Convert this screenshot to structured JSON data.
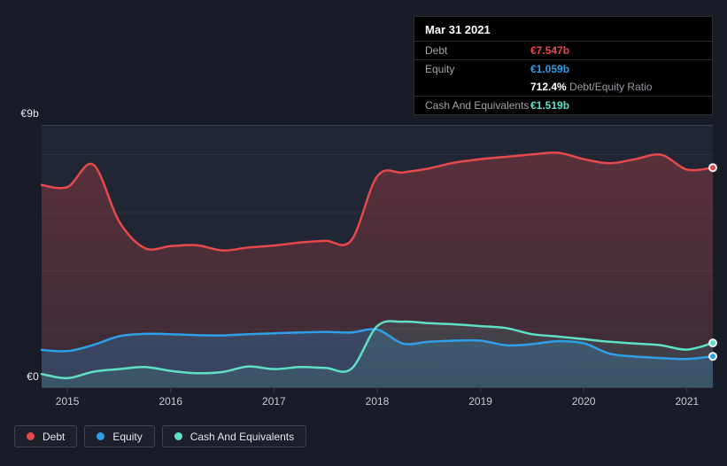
{
  "colors": {
    "page_bg": "#171c26",
    "plot_bg": "#202633",
    "grid": "rgba(255,255,255,0.06)",
    "grid_top": "#3a414d",
    "axis": "#3b4350",
    "debt": "#e6494b",
    "equity": "#2e9fe8",
    "cash": "#5fe0c4",
    "marker_ring": "#eef1f4"
  },
  "y_axis": {
    "top_label": "€9b",
    "zero_label": "€0"
  },
  "tooltip": {
    "date": "Mar 31 2021",
    "debt_label": "Debt",
    "debt_value": "€7.547b",
    "equity_label": "Equity",
    "equity_value": "€1.059b",
    "ratio_value": "712.4%",
    "ratio_label": " Debt/Equity Ratio",
    "cash_label": "Cash And Equivalents",
    "cash_value": "€1.519b"
  },
  "legend": {
    "items": [
      {
        "label": "Debt",
        "color": "#e6494b"
      },
      {
        "label": "Equity",
        "color": "#2e9fe8"
      },
      {
        "label": "Cash And Equivalents",
        "color": "#5fe0c4"
      }
    ]
  },
  "chart_data": {
    "type": "area",
    "x_unit": "decimal_year_quarterly",
    "xlim": [
      2014.75,
      2021.25
    ],
    "ylim": [
      0,
      9
    ],
    "y_gridlines": [
      2,
      4,
      6,
      8
    ],
    "x_ticks": [
      2015,
      2016,
      2017,
      2018,
      2019,
      2020,
      2021
    ],
    "grid": "horizontal-only",
    "legend_position": "bottom-left",
    "x": [
      2014.75,
      2015.0,
      2015.25,
      2015.5,
      2015.75,
      2016.0,
      2016.25,
      2016.5,
      2016.75,
      2017.0,
      2017.25,
      2017.5,
      2017.75,
      2018.0,
      2018.25,
      2018.5,
      2018.75,
      2019.0,
      2019.25,
      2019.5,
      2019.75,
      2020.0,
      2020.25,
      2020.5,
      2020.75,
      2021.0,
      2021.25
    ],
    "series": [
      {
        "name": "Debt",
        "unit": "€b",
        "color": "#e6494b",
        "fill_top": "rgba(230,73,75,0.30)",
        "fill_bottom": "rgba(230,73,75,0.13)",
        "values": [
          6.95,
          6.88,
          7.65,
          5.7,
          4.78,
          4.85,
          4.88,
          4.7,
          4.8,
          4.87,
          4.97,
          5.03,
          5.05,
          7.25,
          7.38,
          7.52,
          7.72,
          7.84,
          7.92,
          8.0,
          8.06,
          7.84,
          7.7,
          7.84,
          7.99,
          7.48,
          7.547
        ]
      },
      {
        "name": "Equity",
        "unit": "€b",
        "color": "#2e9fe8",
        "fill_top": "rgba(46,144,215,0.42)",
        "fill_bottom": "rgba(46,144,215,0.24)",
        "values": [
          1.28,
          1.24,
          1.45,
          1.75,
          1.83,
          1.82,
          1.79,
          1.78,
          1.82,
          1.85,
          1.88,
          1.9,
          1.88,
          1.98,
          1.5,
          1.56,
          1.6,
          1.6,
          1.44,
          1.48,
          1.58,
          1.51,
          1.15,
          1.05,
          1.0,
          0.97,
          1.059
        ]
      },
      {
        "name": "Cash And Equivalents",
        "unit": "€b",
        "color": "#5fe0c4",
        "fill_top": "rgba(95,224,196,0.16)",
        "fill_bottom": "rgba(95,224,196,0.10)",
        "values": [
          0.45,
          0.31,
          0.53,
          0.62,
          0.69,
          0.56,
          0.48,
          0.52,
          0.71,
          0.62,
          0.69,
          0.66,
          0.63,
          2.1,
          2.25,
          2.2,
          2.16,
          2.1,
          2.03,
          1.82,
          1.74,
          1.65,
          1.56,
          1.5,
          1.44,
          1.29,
          1.519
        ]
      }
    ]
  }
}
